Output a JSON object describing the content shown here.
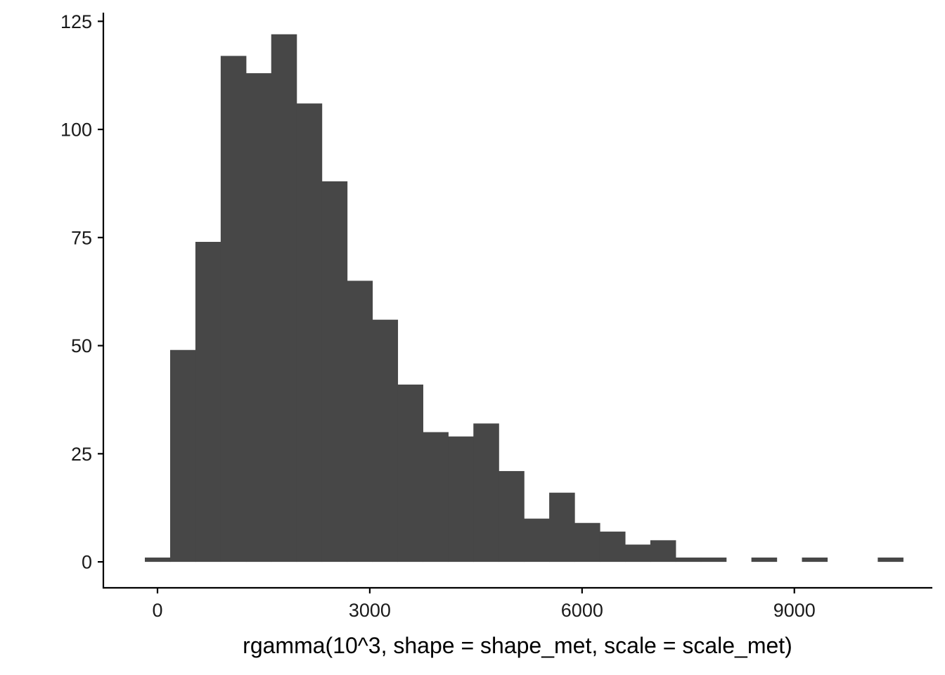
{
  "chart_data": {
    "type": "bar",
    "title": "",
    "xlabel": "rgamma(10^3, shape = shape_met, scale = scale_met)",
    "ylabel": "",
    "bin_width": 357.1,
    "bins": [
      {
        "x0": -178.6,
        "x1": 178.6,
        "count": 1
      },
      {
        "x0": 178.6,
        "x1": 535.7,
        "count": 49
      },
      {
        "x0": 535.7,
        "x1": 892.9,
        "count": 74
      },
      {
        "x0": 892.9,
        "x1": 1250.0,
        "count": 117
      },
      {
        "x0": 1250.0,
        "x1": 1607.1,
        "count": 113
      },
      {
        "x0": 1607.1,
        "x1": 1964.3,
        "count": 122
      },
      {
        "x0": 1964.3,
        "x1": 2321.4,
        "count": 106
      },
      {
        "x0": 2321.4,
        "x1": 2678.6,
        "count": 88
      },
      {
        "x0": 2678.6,
        "x1": 3035.7,
        "count": 65
      },
      {
        "x0": 3035.7,
        "x1": 3392.9,
        "count": 56
      },
      {
        "x0": 3392.9,
        "x1": 3750.0,
        "count": 41
      },
      {
        "x0": 3750.0,
        "x1": 4107.1,
        "count": 30
      },
      {
        "x0": 4107.1,
        "x1": 4464.3,
        "count": 29
      },
      {
        "x0": 4464.3,
        "x1": 4821.4,
        "count": 32
      },
      {
        "x0": 4821.4,
        "x1": 5178.6,
        "count": 21
      },
      {
        "x0": 5178.6,
        "x1": 5535.7,
        "count": 10
      },
      {
        "x0": 5535.7,
        "x1": 5892.9,
        "count": 16
      },
      {
        "x0": 5892.9,
        "x1": 6250.0,
        "count": 9
      },
      {
        "x0": 6250.0,
        "x1": 6607.1,
        "count": 7
      },
      {
        "x0": 6607.1,
        "x1": 6964.3,
        "count": 4
      },
      {
        "x0": 6964.3,
        "x1": 7321.4,
        "count": 5
      },
      {
        "x0": 7321.4,
        "x1": 7678.6,
        "count": 1
      },
      {
        "x0": 7678.6,
        "x1": 8035.7,
        "count": 1
      },
      {
        "x0": 8035.7,
        "x1": 8392.9,
        "count": 0
      },
      {
        "x0": 8392.9,
        "x1": 8750.0,
        "count": 1
      },
      {
        "x0": 8750.0,
        "x1": 9107.1,
        "count": 0
      },
      {
        "x0": 9107.1,
        "x1": 9464.3,
        "count": 1
      },
      {
        "x0": 9464.3,
        "x1": 9821.4,
        "count": 0
      },
      {
        "x0": 9821.4,
        "x1": 10178.6,
        "count": 0
      },
      {
        "x0": 10178.6,
        "x1": 10535.7,
        "count": 1
      }
    ],
    "xlim": [
      -765,
      10950
    ],
    "ylim": [
      -6,
      127
    ],
    "x_ticks": [
      0,
      3000,
      6000,
      9000
    ],
    "x_tick_labels": [
      "0",
      "3000",
      "6000",
      "9000"
    ],
    "y_ticks": [
      0,
      25,
      50,
      75,
      100,
      125
    ],
    "y_tick_labels": [
      "0",
      "25",
      "50",
      "75",
      "100",
      "125"
    ],
    "grid": false,
    "legend": "none",
    "colors": {
      "bar": "#474747",
      "axis": "#000000",
      "text": "#1a1a1a"
    }
  }
}
